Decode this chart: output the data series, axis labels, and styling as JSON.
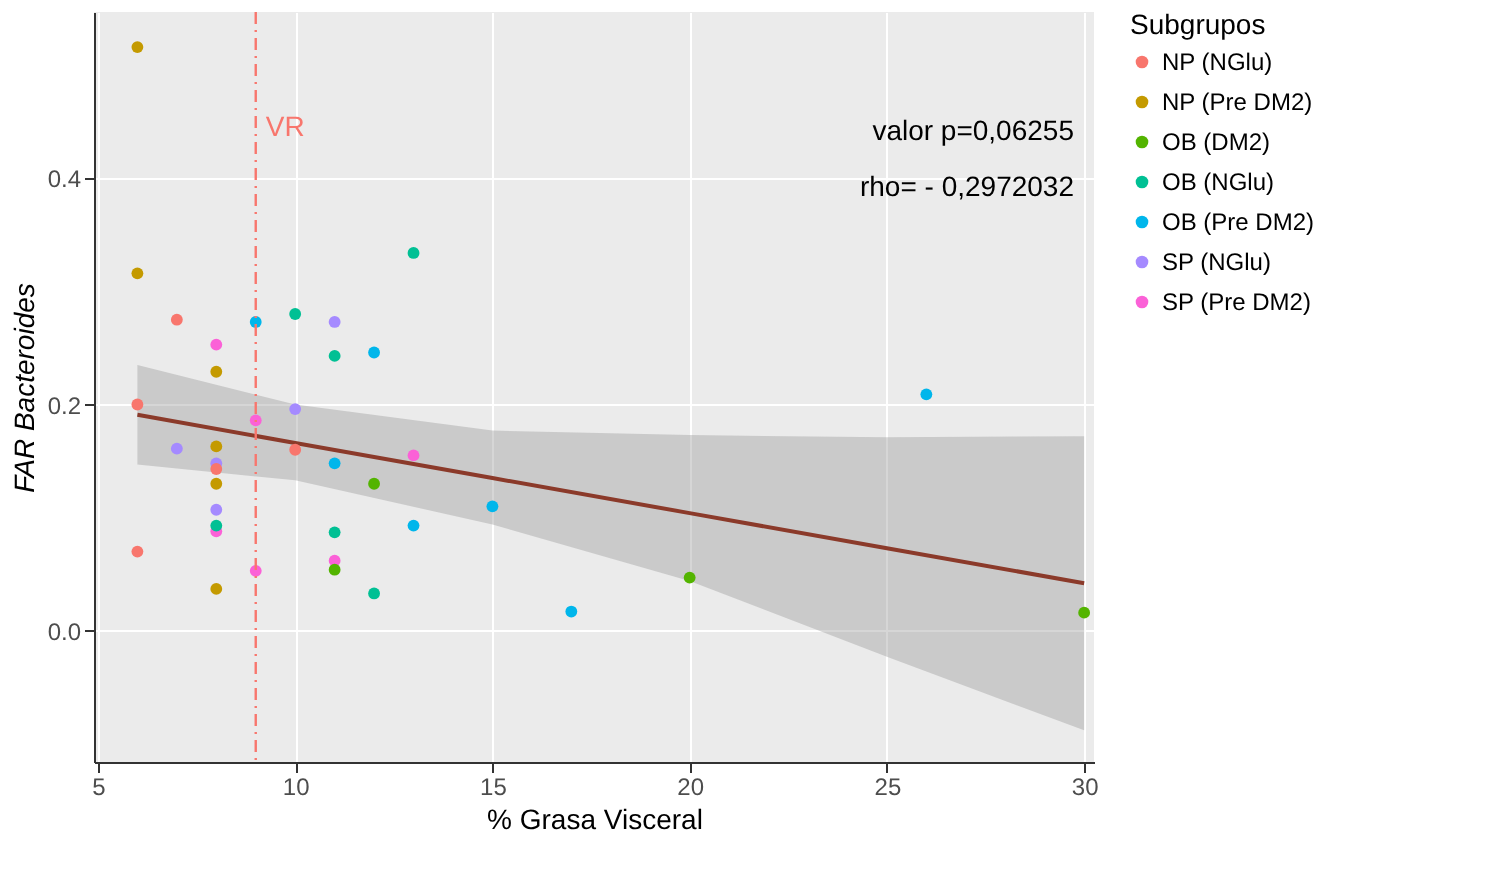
{
  "chart_data": {
    "type": "scatter",
    "xlabel": "% Grasa Visceral",
    "ylabel": "FAR Bacteroides",
    "legend_title": "Subgrupos",
    "legend": "right",
    "grid": true,
    "marker": "circle",
    "xlim": [
      4.9,
      30.25
    ],
    "ylim": [
      -0.116,
      0.547
    ],
    "xticks": [
      5,
      10,
      15,
      20,
      25,
      30
    ],
    "yticks": [
      {
        "value": 0,
        "label": "0.0"
      },
      {
        "value": 0.2,
        "label": "0.2"
      },
      {
        "value": 0.4,
        "label": "0.4"
      }
    ],
    "series": [
      {
        "name": "NP (NGlu)",
        "color": "#f8766d",
        "x": [
          7,
          6,
          6,
          10,
          8
        ],
        "values": [
          0.275,
          0.2,
          0.07,
          0.16,
          0.143
        ]
      },
      {
        "name": "NP (Pre DM2)",
        "color": "#c49a00",
        "x": [
          6,
          6,
          8,
          8,
          8,
          8
        ],
        "values": [
          0.516,
          0.316,
          0.229,
          0.163,
          0.13,
          0.037
        ]
      },
      {
        "name": "OB (DM2)",
        "color": "#53b400",
        "x": [
          12,
          11,
          20,
          30
        ],
        "values": [
          0.13,
          0.054,
          0.047,
          0.016
        ]
      },
      {
        "name": "OB (NGlu)",
        "color": "#00c094",
        "x": [
          10,
          11,
          8,
          11,
          12,
          13
        ],
        "values": [
          0.28,
          0.243,
          0.093,
          0.087,
          0.033,
          0.334
        ]
      },
      {
        "name": "OB (Pre DM2)",
        "color": "#00b6eb",
        "x": [
          9,
          12,
          11,
          13,
          15,
          17,
          26
        ],
        "values": [
          0.273,
          0.246,
          0.148,
          0.093,
          0.11,
          0.017,
          0.209
        ]
      },
      {
        "name": "SP (NGlu)",
        "color": "#a58aff",
        "x": [
          11,
          7,
          10,
          8,
          8
        ],
        "values": [
          0.273,
          0.161,
          0.196,
          0.148,
          0.107
        ]
      },
      {
        "name": "SP (Pre DM2)",
        "color": "#fb61d7",
        "x": [
          8,
          9,
          8,
          11,
          9,
          13
        ],
        "values": [
          0.253,
          0.186,
          0.088,
          0.062,
          0.053,
          0.155
        ]
      },
      {
        "type": "line",
        "marker": "none",
        "color": "#8b3a2a",
        "x": [
          6,
          10,
          15,
          20,
          25,
          30
        ],
        "values": [
          0.191,
          0.166,
          0.135,
          0.104,
          0.073,
          0.042
        ],
        "lower": [
          0.147,
          0.133,
          0.094,
          0.044,
          -0.023,
          -0.088
        ],
        "upper": [
          0.235,
          0.2,
          0.177,
          0.173,
          0.171,
          0.172
        ]
      }
    ],
    "ref_lines": [
      {
        "axis": "x",
        "value": 9,
        "label": "VR",
        "color": "#f8766d",
        "line_style": "dashdot"
      }
    ],
    "annotations": [
      "valor p=0,06255",
      "rho= - 0,2972032"
    ]
  }
}
